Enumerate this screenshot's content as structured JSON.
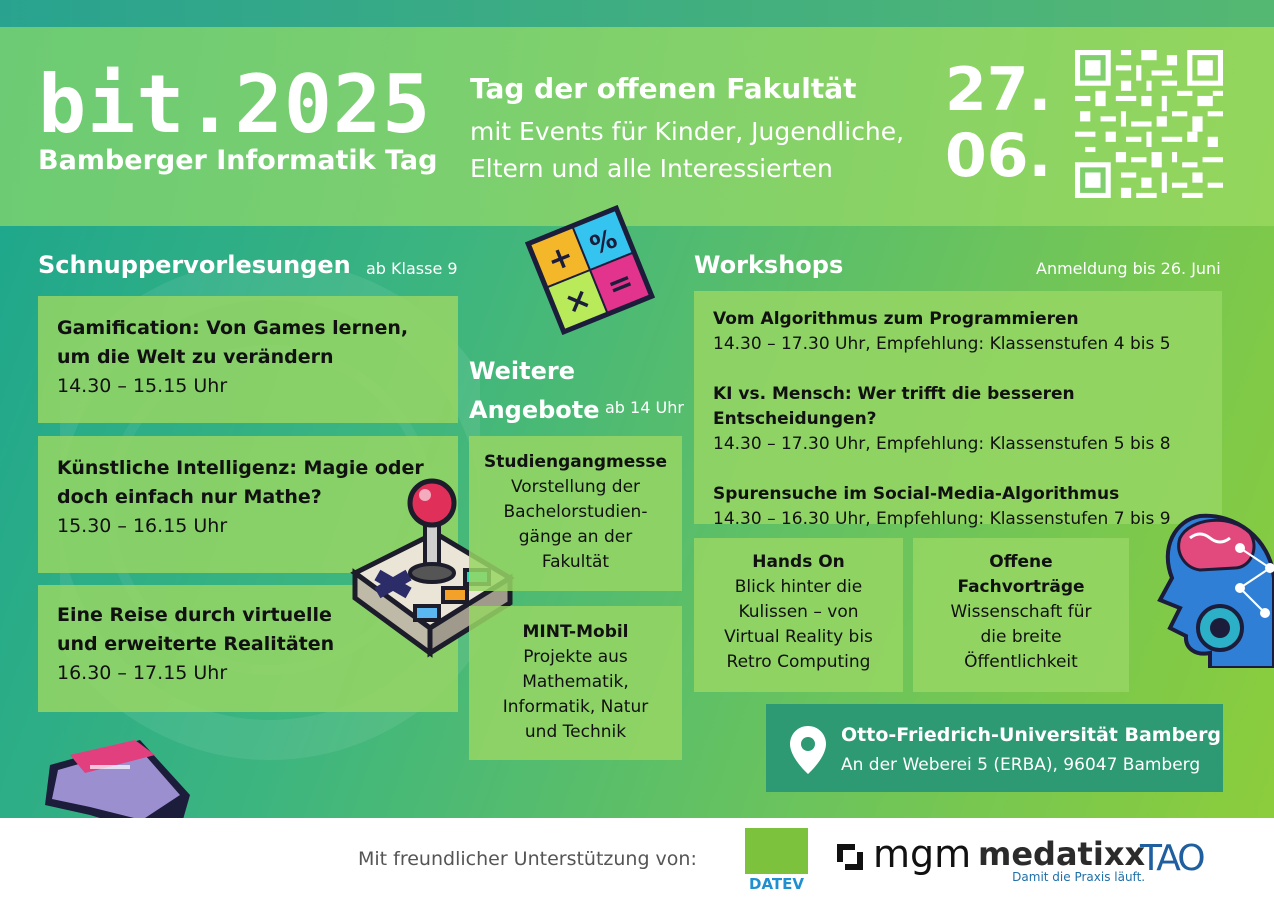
{
  "header": {
    "brand": "bit.2025",
    "brand_subtitle": "Bamberger Informatik Tag",
    "tagline_title": "Tag der offenen Fakultät",
    "tagline_line1": "mit Events für Kinder, Jugendliche,",
    "tagline_line2": "Eltern und alle Interessierten",
    "date_day": "27.",
    "date_month": "06."
  },
  "lectures": {
    "title": "Schnuppervorlesungen",
    "note": "ab Klasse 9",
    "items": [
      {
        "title1": "Gamification: Von Games lernen,",
        "title2": "um die Welt zu verändern",
        "time": "14.30 – 15.15 Uhr"
      },
      {
        "title1": "Künstliche Intelligenz: Magie oder",
        "title2": "doch einfach nur Mathe?",
        "time": "15.30 – 16.15 Uhr"
      },
      {
        "title1": "Eine Reise durch virtuelle",
        "title2": "und erweiterte Realitäten",
        "time": "16.30 – 17.15 Uhr"
      }
    ]
  },
  "more": {
    "title1": "Weitere",
    "title2": "Angebote",
    "note": "ab 14 Uhr",
    "cards": [
      {
        "heading": "Studiengangmesse",
        "l1": "Vorstellung der",
        "l2": "Bachelorstudien-",
        "l3": "gänge an der",
        "l4": "Fakultät"
      },
      {
        "heading": "MINT-Mobil",
        "l1": "Projekte aus",
        "l2": "Mathematik,",
        "l3": "Informatik, Natur",
        "l4": "und Technik"
      }
    ]
  },
  "workshops": {
    "title": "Workshops",
    "note": "Anmeldung bis 26. Juni",
    "items": [
      {
        "title": "Vom Algorithmus zum Programmieren",
        "time": "14.30 – 17.30 Uhr, Empfehlung: Klassenstufen 4 bis 5"
      },
      {
        "title": "KI vs. Mensch: Wer trifft die besseren Entscheidungen?",
        "time": "14.30 – 17.30 Uhr, Empfehlung: Klassenstufen 5 bis 8"
      },
      {
        "title": "Spurensuche im Social-Media-Algorithmus",
        "time": "14.30 – 16.30 Uhr, Empfehlung: Klassenstufen 7 bis 9"
      }
    ],
    "hands_on": {
      "heading": "Hands On",
      "l1": "Blick hinter die",
      "l2": "Kulissen – von",
      "l3": "Virtual Reality bis",
      "l4": "Retro Computing"
    },
    "talks": {
      "heading1": "Offene",
      "heading2": "Fachvorträge",
      "l1": "Wissenschaft für",
      "l2": "die breite",
      "l3": "Öffentlichkeit"
    }
  },
  "location": {
    "name": "Otto-Friedrich-Universität Bamberg",
    "address": "An der Weberei 5 (ERBA), 96047 Bamberg"
  },
  "footer": {
    "support_text": "Mit freundlicher Unterstützung von:",
    "sponsors": {
      "datev": "DATEV",
      "mgm": "mgm",
      "medatixx": "medatixx",
      "medatixx_claim": "Damit die Praxis läuft.",
      "tao": "TAO"
    }
  },
  "calc_symbols": [
    "+",
    "%",
    "×",
    "="
  ],
  "colors": {
    "green_card": "#96d664",
    "location_bg": "#2e9a74"
  }
}
